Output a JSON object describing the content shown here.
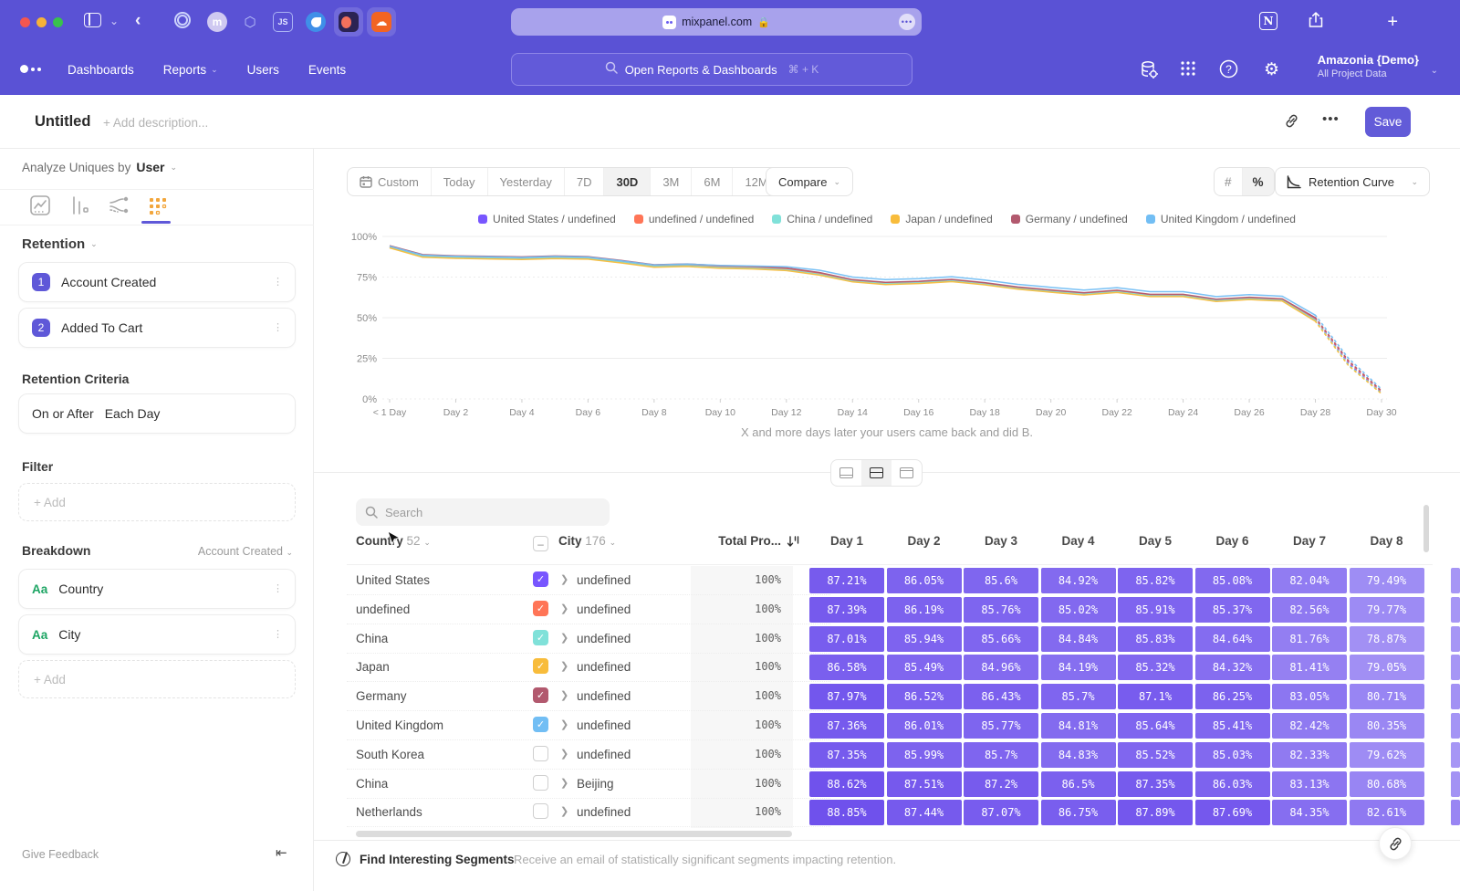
{
  "browser": {
    "url": "mixpanel.com",
    "icons": [
      "sidebar-toggle-icon",
      "chevron-down-icon",
      "back-icon",
      "ring-favicon",
      "m-favicon",
      "cube-favicon",
      "js-favicon",
      "bird-favicon",
      "mixpanel-favicon",
      "soundcloud-favicon",
      "lock-icon",
      "notion-icon",
      "share-icon",
      "new-tab-icon"
    ]
  },
  "nav": {
    "items": [
      {
        "label": "Dashboards",
        "chevron": false
      },
      {
        "label": "Reports",
        "chevron": true
      },
      {
        "label": "Users",
        "chevron": false
      },
      {
        "label": "Events",
        "chevron": false
      }
    ],
    "search_placeholder": "Open Reports & Dashboards",
    "search_shortcut": "⌘ + K",
    "project_name": "Amazonia {Demo}",
    "project_scope": "All Project Data"
  },
  "title_bar": {
    "title": "Untitled",
    "description_placeholder": "+ Add description...",
    "save_label": "Save"
  },
  "sidebar": {
    "analyze_label": "Analyze Uniques by",
    "analyze_value": "User",
    "retention_label": "Retention",
    "steps": [
      {
        "num": "1",
        "label": "Account Created"
      },
      {
        "num": "2",
        "label": "Added To Cart"
      }
    ],
    "criteria_label": "Retention Criteria",
    "criteria_condition": "On or After",
    "criteria_period": "Each Day",
    "filter_label": "Filter",
    "add_label": "+ Add",
    "breakdown_label": "Breakdown",
    "breakdown_scope": "Account Created",
    "breakdowns": [
      {
        "badge": "Aa",
        "label": "Country"
      },
      {
        "badge": "Aa",
        "label": "City"
      }
    ],
    "give_feedback": "Give Feedback"
  },
  "controls": {
    "ranges": [
      {
        "label": "Custom",
        "icon": "calendar",
        "active": false
      },
      {
        "label": "Today",
        "active": false
      },
      {
        "label": "Yesterday",
        "active": false
      },
      {
        "label": "7D",
        "active": false
      },
      {
        "label": "30D",
        "active": true
      },
      {
        "label": "3M",
        "active": false
      },
      {
        "label": "6M",
        "active": false
      },
      {
        "label": "12M",
        "active": false
      }
    ],
    "compare_label": "Compare",
    "count_toggle": [
      "#",
      "%"
    ],
    "count_active": "%",
    "view_mode": "Retention Curve"
  },
  "chart_data": {
    "type": "line",
    "caption": "X and more days later your users came back and did B.",
    "x_labels": [
      "< 1 Day",
      "Day 2",
      "Day 4",
      "Day 6",
      "Day 8",
      "Day 10",
      "Day 12",
      "Day 14",
      "Day 16",
      "Day 18",
      "Day 20",
      "Day 22",
      "Day 24",
      "Day 26",
      "Day 28",
      "Day 30"
    ],
    "y_ticks": [
      "0%",
      "25%",
      "50%",
      "75%",
      "100%"
    ],
    "x_range": [
      0,
      30
    ],
    "y_range": [
      0,
      100
    ],
    "dashed_from_day": 28,
    "series": [
      {
        "name": "United States / undefined",
        "color": "#7856ff",
        "values": [
          93.5,
          88.0,
          87.3,
          87.0,
          86.6,
          87.2,
          86.8,
          84.5,
          81.8,
          82.3,
          81.2,
          80.8,
          79.8,
          77.0,
          72.8,
          71.2,
          71.8,
          73.0,
          71.0,
          68.3,
          66.5,
          64.8,
          66.3,
          63.8,
          63.8,
          60.8,
          62.0,
          61.0,
          49.0,
          22.0,
          4.0
        ]
      },
      {
        "name": "undefined / undefined",
        "color": "#ff7557",
        "values": [
          93.8,
          88.3,
          87.6,
          87.3,
          86.9,
          87.5,
          87.1,
          84.8,
          82.1,
          82.6,
          81.5,
          81.1,
          80.1,
          77.3,
          73.1,
          71.5,
          72.1,
          73.3,
          71.3,
          68.6,
          66.8,
          65.1,
          66.6,
          64.1,
          64.1,
          61.1,
          62.3,
          61.3,
          49.6,
          23.0,
          4.5
        ]
      },
      {
        "name": "China / undefined",
        "color": "#80e1d9",
        "values": [
          93.2,
          87.7,
          87.0,
          86.7,
          86.3,
          86.9,
          86.5,
          84.2,
          81.5,
          82.0,
          80.9,
          80.5,
          79.5,
          76.7,
          72.5,
          70.9,
          71.5,
          72.7,
          70.7,
          68.0,
          66.2,
          64.5,
          66.0,
          63.5,
          63.5,
          60.5,
          61.7,
          60.7,
          48.4,
          21.0,
          3.5
        ]
      },
      {
        "name": "Japan / undefined",
        "color": "#f8bc3b",
        "values": [
          93.0,
          87.2,
          86.5,
          86.2,
          85.8,
          86.4,
          86.0,
          83.7,
          81.0,
          81.5,
          80.4,
          80.0,
          79.0,
          76.2,
          72.0,
          70.4,
          71.0,
          72.2,
          70.2,
          67.5,
          65.7,
          64.0,
          65.5,
          63.0,
          63.0,
          60.0,
          61.2,
          60.2,
          47.8,
          20.5,
          3.2
        ]
      },
      {
        "name": "Germany / undefined",
        "color": "#b2596e",
        "values": [
          94.3,
          88.8,
          88.1,
          87.8,
          87.4,
          88.0,
          87.6,
          85.3,
          82.6,
          83.1,
          82.0,
          81.6,
          80.6,
          77.8,
          73.4,
          71.8,
          72.4,
          73.6,
          71.6,
          68.9,
          67.1,
          65.4,
          66.9,
          64.4,
          64.4,
          61.4,
          62.6,
          61.6,
          50.0,
          23.5,
          5.0
        ]
      },
      {
        "name": "United Kingdom / undefined",
        "color": "#72bef4",
        "values": [
          94.0,
          88.5,
          87.8,
          87.5,
          87.1,
          87.7,
          87.3,
          85.0,
          82.5,
          83.0,
          82.2,
          81.8,
          81.4,
          79.2,
          75.0,
          73.4,
          74.0,
          75.2,
          73.2,
          70.5,
          68.7,
          67.0,
          68.5,
          66.0,
          66.0,
          63.0,
          64.2,
          63.2,
          51.5,
          25.0,
          6.0
        ]
      }
    ]
  },
  "table": {
    "search_placeholder": "Search",
    "country_label": "Country",
    "country_count": "52",
    "city_label": "City",
    "city_count": "176",
    "total_label": "Total Pro...",
    "day_headers": [
      "Day 1",
      "Day 2",
      "Day 3",
      "Day 4",
      "Day 5",
      "Day 6",
      "Day 7",
      "Day 8"
    ],
    "rows": [
      {
        "country": "United States",
        "checked": true,
        "color": "#7856ff",
        "city": "undefined",
        "total": "100%",
        "values": [
          "87.21%",
          "86.05%",
          "85.6%",
          "84.92%",
          "85.82%",
          "85.08%",
          "82.04%",
          "79.49%"
        ]
      },
      {
        "country": "undefined",
        "checked": true,
        "color": "#ff7557",
        "city": "undefined",
        "total": "100%",
        "values": [
          "87.39%",
          "86.19%",
          "85.76%",
          "85.02%",
          "85.91%",
          "85.37%",
          "82.56%",
          "79.77%"
        ]
      },
      {
        "country": "China",
        "checked": true,
        "color": "#80e1d9",
        "city": "undefined",
        "total": "100%",
        "values": [
          "87.01%",
          "85.94%",
          "85.66%",
          "84.84%",
          "85.83%",
          "84.64%",
          "81.76%",
          "78.87%"
        ]
      },
      {
        "country": "Japan",
        "checked": true,
        "color": "#f8bc3b",
        "city": "undefined",
        "total": "100%",
        "values": [
          "86.58%",
          "85.49%",
          "84.96%",
          "84.19%",
          "85.32%",
          "84.32%",
          "81.41%",
          "79.05%"
        ]
      },
      {
        "country": "Germany",
        "checked": true,
        "color": "#b2596e",
        "city": "undefined",
        "total": "100%",
        "values": [
          "87.97%",
          "86.52%",
          "86.43%",
          "85.7%",
          "87.1%",
          "86.25%",
          "83.05%",
          "80.71%"
        ]
      },
      {
        "country": "United Kingdom",
        "checked": true,
        "color": "#72bef4",
        "city": "undefined",
        "total": "100%",
        "values": [
          "87.36%",
          "86.01%",
          "85.77%",
          "84.81%",
          "85.64%",
          "85.41%",
          "82.42%",
          "80.35%"
        ]
      },
      {
        "country": "South Korea",
        "checked": false,
        "color": null,
        "city": "undefined",
        "total": "100%",
        "values": [
          "87.35%",
          "85.99%",
          "85.7%",
          "84.83%",
          "85.52%",
          "85.03%",
          "82.33%",
          "79.62%"
        ]
      },
      {
        "country": "China",
        "checked": false,
        "color": null,
        "city": "Beijing",
        "total": "100%",
        "values": [
          "88.62%",
          "87.51%",
          "87.2%",
          "86.5%",
          "87.35%",
          "86.03%",
          "83.13%",
          "80.68%"
        ]
      },
      {
        "country": "Netherlands",
        "checked": false,
        "color": null,
        "city": "undefined",
        "total": "100%",
        "values": [
          "88.85%",
          "87.44%",
          "87.07%",
          "86.75%",
          "87.89%",
          "87.69%",
          "84.35%",
          "82.61%"
        ]
      }
    ]
  },
  "bottom": {
    "title": "Find Interesting Segments",
    "subtitle": "Receive an email of statistically significant segments impacting retention."
  }
}
